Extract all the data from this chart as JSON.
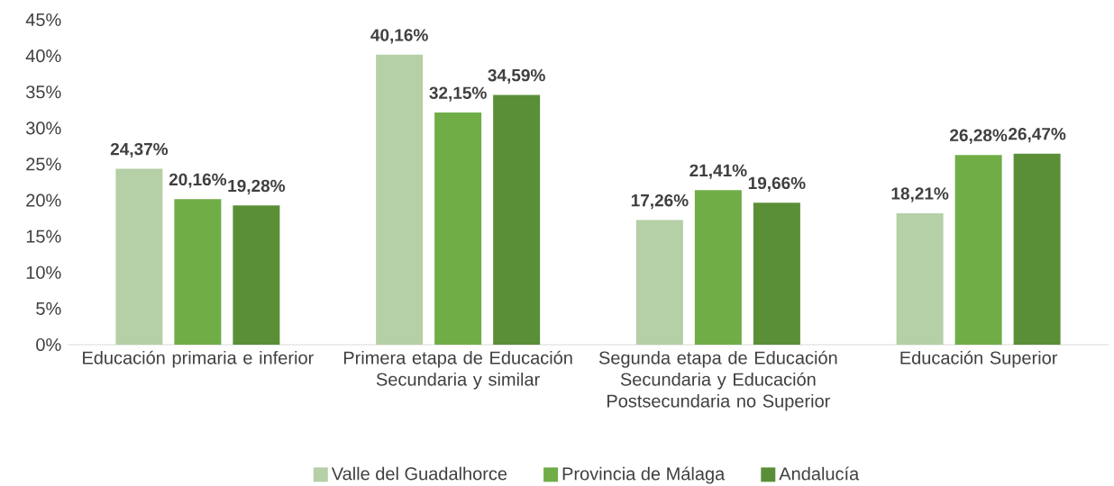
{
  "chart_data": {
    "type": "bar",
    "categories": [
      "Educación primaria e inferior",
      "Primera etapa de Educación Secundaria y similar",
      "Segunda etapa de Educación Secundaria y Educación Postsecundaria no Superior",
      "Educación Superior"
    ],
    "series": [
      {
        "name": "Valle del Guadalhorce",
        "color": "#b5cfa6",
        "values": [
          24.37,
          40.16,
          17.26,
          18.21
        ],
        "value_labels": [
          "24,37%",
          "40,16%",
          "17,26%",
          "18,21%"
        ]
      },
      {
        "name": "Provincia de Málaga",
        "color": "#70ad47",
        "values": [
          20.16,
          32.15,
          21.41,
          26.28
        ],
        "value_labels": [
          "20,16%",
          "32,15%",
          "21,41%",
          "26,28%"
        ]
      },
      {
        "name": "Andalucía",
        "color": "#5a8f38",
        "values": [
          19.28,
          34.59,
          19.66,
          26.47
        ],
        "value_labels": [
          "19,28%",
          "34,59%",
          "19,66%",
          "26,47%"
        ]
      }
    ],
    "ylim": [
      0,
      45
    ],
    "yticks": [
      {
        "value": 0,
        "label": "0%"
      },
      {
        "value": 5,
        "label": "5%"
      },
      {
        "value": 10,
        "label": "10%"
      },
      {
        "value": 15,
        "label": "15%"
      },
      {
        "value": 20,
        "label": "20%"
      },
      {
        "value": 25,
        "label": "25%"
      },
      {
        "value": 30,
        "label": "30%"
      },
      {
        "value": 35,
        "label": "35%"
      },
      {
        "value": 40,
        "label": "40%"
      },
      {
        "value": 45,
        "label": "45%"
      }
    ],
    "grid": false,
    "legend": "bottom"
  }
}
